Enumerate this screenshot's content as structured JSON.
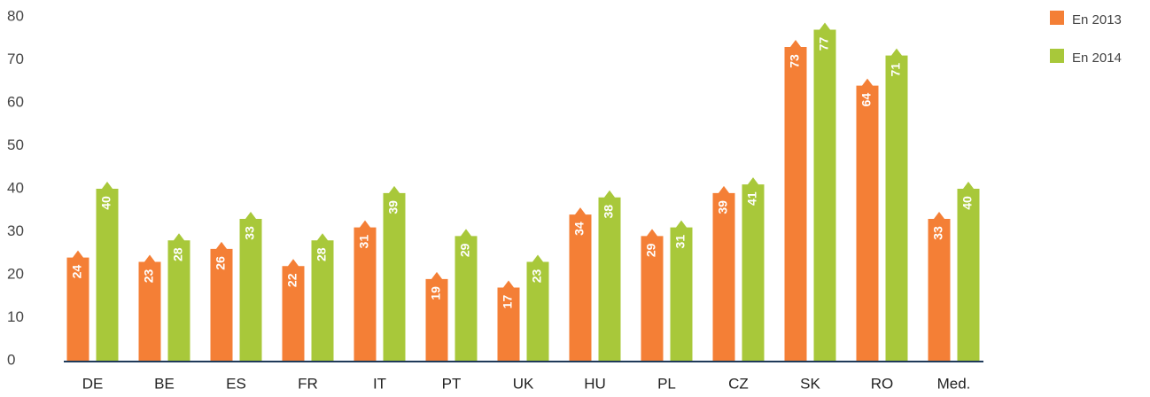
{
  "chart_data": {
    "type": "bar",
    "categories": [
      "DE",
      "BE",
      "ES",
      "FR",
      "IT",
      "PT",
      "UK",
      "HU",
      "PL",
      "CZ",
      "SK",
      "RO",
      "Med."
    ],
    "series": [
      {
        "name": "En 2013",
        "color": "#f47f36",
        "values": [
          24,
          23,
          26,
          22,
          31,
          19,
          17,
          34,
          29,
          39,
          73,
          64,
          33
        ]
      },
      {
        "name": "En 2014",
        "color": "#a8c83a",
        "values": [
          40,
          28,
          33,
          28,
          39,
          29,
          23,
          38,
          31,
          41,
          77,
          71,
          40
        ]
      }
    ],
    "ylim": [
      0,
      80
    ],
    "yticks": [
      0,
      10,
      20,
      30,
      40,
      50,
      60,
      70,
      80
    ],
    "grid": false,
    "legend": "top-right"
  }
}
